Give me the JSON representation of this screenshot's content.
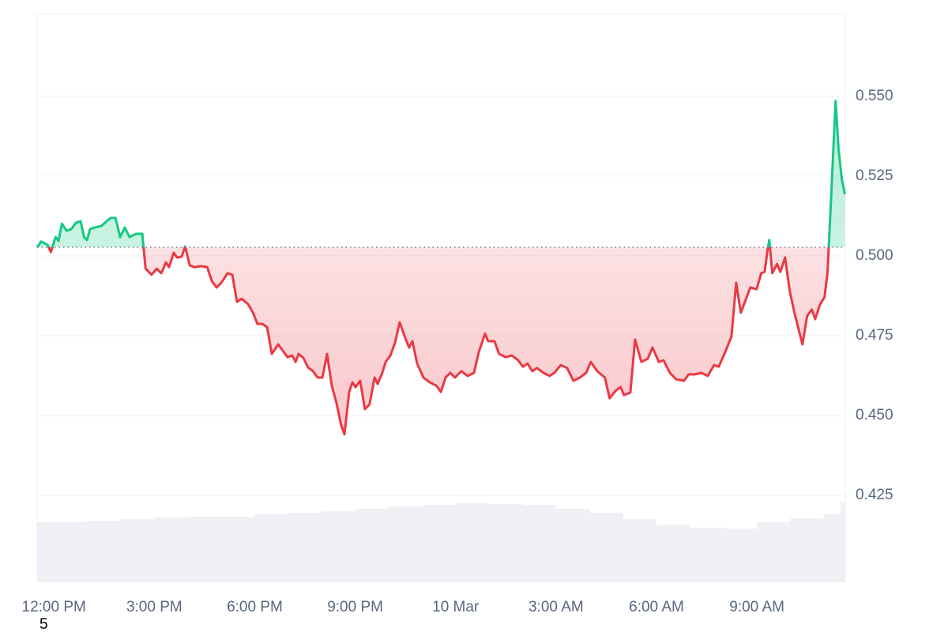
{
  "chart_data": {
    "type": "line",
    "x": [
      -0.5,
      -0.38,
      -0.19,
      -0.09,
      0.05,
      0.14,
      0.24,
      0.38,
      0.52,
      0.66,
      0.8,
      0.9,
      0.99,
      1.08,
      1.23,
      1.42,
      1.6,
      1.7,
      1.84,
      1.98,
      2.12,
      2.26,
      2.45,
      2.64,
      2.74,
      2.92,
      3.07,
      3.21,
      3.35,
      3.44,
      3.58,
      3.68,
      3.82,
      3.92,
      4.06,
      4.2,
      4.39,
      4.58,
      4.72,
      4.86,
      5.0,
      5.19,
      5.33,
      5.47,
      5.61,
      5.8,
      5.94,
      6.08,
      6.23,
      6.37,
      6.51,
      6.7,
      6.84,
      6.98,
      7.12,
      7.22,
      7.31,
      7.45,
      7.59,
      7.74,
      7.88,
      8.02,
      8.16,
      8.3,
      8.44,
      8.58,
      8.68,
      8.82,
      8.92,
      9.01,
      9.15,
      9.29,
      9.43,
      9.58,
      9.67,
      9.81,
      9.91,
      10.05,
      10.19,
      10.33,
      10.47,
      10.61,
      10.71,
      10.85,
      11.04,
      11.23,
      11.42,
      11.56,
      11.7,
      11.84,
      11.98,
      12.17,
      12.36,
      12.55,
      12.69,
      12.88,
      12.97,
      13.16,
      13.3,
      13.49,
      13.68,
      13.87,
      14.01,
      14.15,
      14.29,
      14.43,
      14.62,
      14.81,
      14.95,
      15.14,
      15.33,
      15.52,
      15.71,
      15.9,
      16.04,
      16.23,
      16.46,
      16.6,
      16.79,
      16.93,
      17.03,
      17.22,
      17.36,
      17.55,
      17.74,
      17.88,
      18.07,
      18.21,
      18.4,
      18.58,
      18.82,
      18.96,
      19.15,
      19.34,
      19.53,
      19.72,
      19.86,
      20.05,
      20.24,
      20.38,
      20.52,
      20.66,
      20.8,
      20.99,
      21.13,
      21.23,
      21.32,
      21.37,
      21.46,
      21.6,
      21.7,
      21.84,
      21.98,
      22.12,
      22.36,
      22.5,
      22.64,
      22.74,
      22.88,
      23.02,
      23.11,
      23.21,
      23.35,
      23.44,
      23.54,
      23.63
    ],
    "values": [
      0.5027,
      0.5045,
      0.5035,
      0.5012,
      0.5059,
      0.5047,
      0.5101,
      0.5079,
      0.5084,
      0.5104,
      0.5109,
      0.5059,
      0.505,
      0.5084,
      0.5089,
      0.5094,
      0.5111,
      0.5119,
      0.5119,
      0.5059,
      0.5089,
      0.5059,
      0.5069,
      0.5069,
      0.496,
      0.4941,
      0.496,
      0.4946,
      0.498,
      0.4965,
      0.501,
      0.4995,
      0.4998,
      0.503,
      0.497,
      0.4965,
      0.4968,
      0.4965,
      0.4921,
      0.4901,
      0.4916,
      0.4946,
      0.4941,
      0.4856,
      0.4866,
      0.4849,
      0.4824,
      0.4787,
      0.4787,
      0.4777,
      0.4693,
      0.4723,
      0.4703,
      0.4683,
      0.4688,
      0.4668,
      0.4693,
      0.4681,
      0.4651,
      0.4639,
      0.4619,
      0.4619,
      0.4693,
      0.4594,
      0.454,
      0.447,
      0.4441,
      0.4574,
      0.4604,
      0.4589,
      0.4609,
      0.452,
      0.4535,
      0.4619,
      0.4599,
      0.4634,
      0.4668,
      0.4688,
      0.4728,
      0.4792,
      0.475,
      0.4713,
      0.4733,
      0.4663,
      0.4619,
      0.4604,
      0.4594,
      0.4574,
      0.4619,
      0.4634,
      0.4619,
      0.4639,
      0.4624,
      0.4634,
      0.4698,
      0.4757,
      0.4733,
      0.4733,
      0.4693,
      0.4683,
      0.4688,
      0.4673,
      0.4653,
      0.4663,
      0.4639,
      0.4649,
      0.4634,
      0.4624,
      0.4634,
      0.4658,
      0.4649,
      0.4609,
      0.4619,
      0.4634,
      0.4668,
      0.4639,
      0.4619,
      0.4554,
      0.4579,
      0.4589,
      0.4564,
      0.4572,
      0.4738,
      0.4668,
      0.4678,
      0.4713,
      0.4668,
      0.4673,
      0.4634,
      0.4614,
      0.4609,
      0.4629,
      0.4629,
      0.4634,
      0.4624,
      0.4658,
      0.4653,
      0.4698,
      0.4748,
      0.4916,
      0.4822,
      0.4861,
      0.4901,
      0.4896,
      0.4946,
      0.495,
      0.502,
      0.505,
      0.4946,
      0.4975,
      0.495,
      0.4995,
      0.4891,
      0.4822,
      0.4723,
      0.4812,
      0.4832,
      0.4802,
      0.4847,
      0.4871,
      0.495,
      0.5168,
      0.5485,
      0.5332,
      0.5238,
      0.5193
    ],
    "reference": 0.5027,
    "color_up": "#16c784",
    "color_down": "#ea3943",
    "volume": {
      "color": "#eef0f4",
      "x": [
        -0.5,
        0,
        1,
        2,
        3,
        4,
        5,
        6,
        7,
        8,
        9,
        10,
        11,
        12,
        13,
        14,
        15,
        16,
        17,
        18,
        19,
        20,
        21,
        22,
        23,
        23.5
      ],
      "values": [
        0.4166,
        0.4166,
        0.4171,
        0.4176,
        0.4181,
        0.4183,
        0.4183,
        0.4191,
        0.4196,
        0.42,
        0.4208,
        0.4215,
        0.422,
        0.4225,
        0.4223,
        0.422,
        0.4208,
        0.4196,
        0.4176,
        0.4158,
        0.4149,
        0.4146,
        0.4166,
        0.4178,
        0.4191,
        0.4228
      ]
    },
    "xlim": [
      -0.5,
      23.64
    ],
    "xticks": [
      {
        "value": 0,
        "label": "12:00 PM"
      },
      {
        "value": 3,
        "label": "3:00 PM"
      },
      {
        "value": 6,
        "label": "6:00 PM"
      },
      {
        "value": 9,
        "label": "9:00 PM"
      },
      {
        "value": 12,
        "label": "10 Mar"
      },
      {
        "value": 15,
        "label": "3:00 AM"
      },
      {
        "value": 18,
        "label": "6:00 AM"
      },
      {
        "value": 21,
        "label": "9:00 AM"
      }
    ],
    "ylim": [
      0.3978,
      0.5757
    ],
    "yticks": [
      0.425,
      {
        "value": 0.45,
        "label": "0.450"
      },
      0.475,
      {
        "value": 0.5,
        "label": "0.500"
      },
      0.525,
      {
        "value": 0.55,
        "label": "0.550"
      }
    ],
    "grid": true,
    "footnote": "5"
  }
}
